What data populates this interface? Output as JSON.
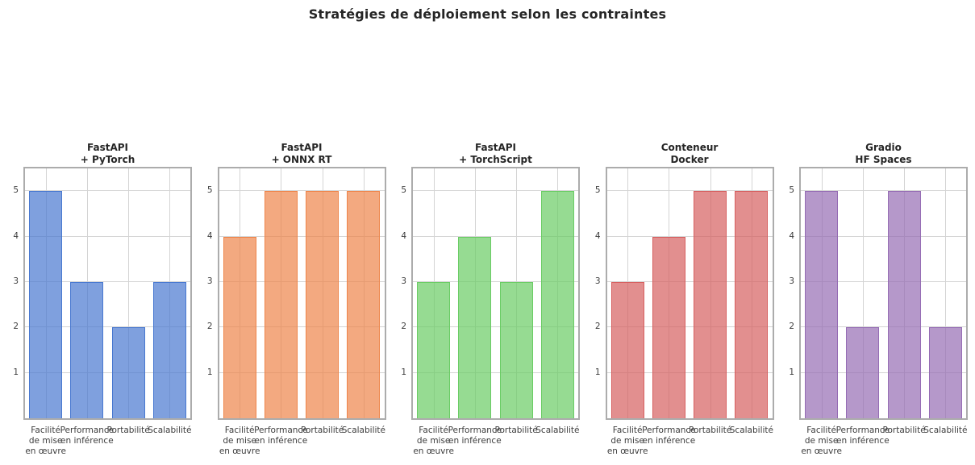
{
  "title": "Stratégies de déploiement selon les contraintes",
  "chart_data": {
    "type": "bar",
    "grid": true,
    "ylim": [
      0,
      5.5
    ],
    "y_ticks": [
      1,
      2,
      3,
      4,
      5
    ],
    "categories": [
      "Facilité\nde mise\nen œuvre",
      "Performance\nen inférence",
      "Portabilité",
      "Scalabilité"
    ],
    "subplots": [
      {
        "title": "FastAPI\n+ PyTorch",
        "values": [
          5,
          3,
          2,
          3
        ],
        "edge_color": "#4878d0",
        "fill_color": "rgba(72,120,208,0.7)"
      },
      {
        "title": "FastAPI\n+ ONNX RT",
        "values": [
          4,
          5,
          5,
          5
        ],
        "edge_color": "#ee854a",
        "fill_color": "rgba(238,133,74,0.7)"
      },
      {
        "title": "FastAPI\n+ TorchScript",
        "values": [
          3,
          4,
          3,
          5
        ],
        "edge_color": "#6acc64",
        "fill_color": "rgba(106,204,100,0.7)"
      },
      {
        "title": "Conteneur\nDocker",
        "values": [
          3,
          4,
          5,
          5
        ],
        "edge_color": "#d65f5f",
        "fill_color": "rgba(214,95,95,0.7)"
      },
      {
        "title": "Gradio\nHF Spaces",
        "values": [
          5,
          2,
          5,
          2
        ],
        "edge_color": "#956cb4",
        "fill_color": "rgba(149,108,180,0.7)"
      }
    ]
  }
}
